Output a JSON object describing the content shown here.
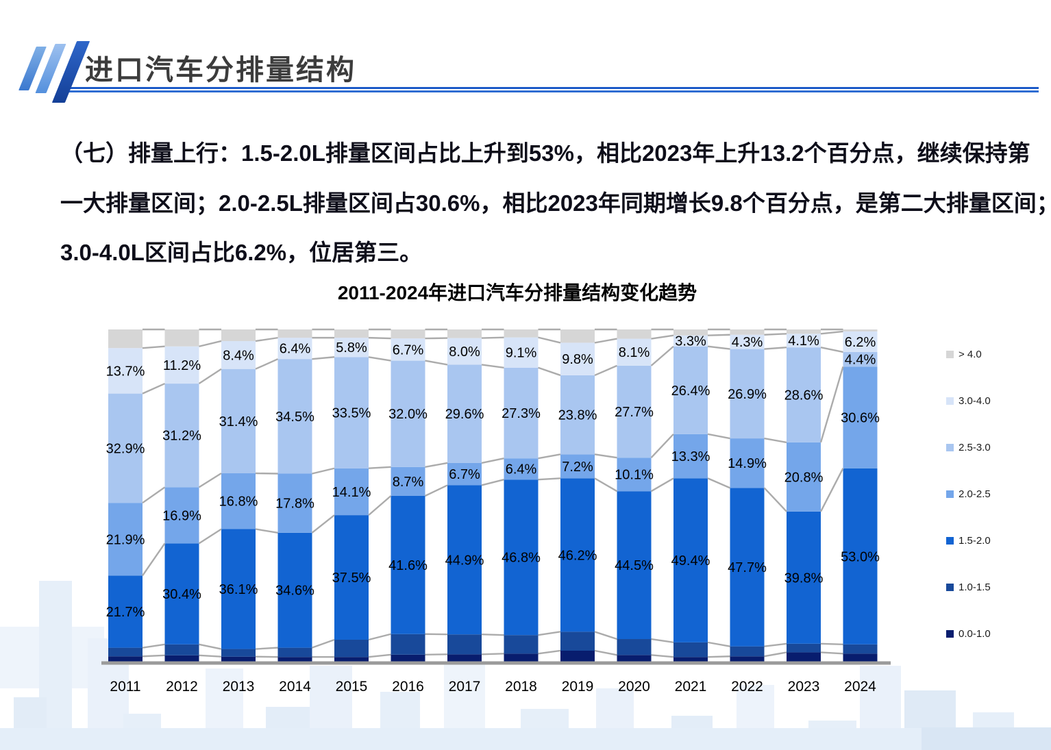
{
  "header": {
    "title": "进口汽车分排量结构"
  },
  "intro": {
    "lines": [
      "（七）排量上行：1.5-2.0L排量区间占比上升到53%，相比2023年上升13.2个百分点，继续保持第",
      "一大排量区间；2.0-2.5L排量区间占30.6%，相比2023年同期增长9.8个百分点，是第二大排量区间；",
      "3.0-4.0L区间占比6.2%，位居第三。"
    ]
  },
  "chart_data": {
    "type": "bar",
    "subtype": "100%-stacked-column-with-series-lines",
    "title": "2011-2024年进口汽车分排量结构变化趋势",
    "unit": "%",
    "grid": false,
    "legend_position": "right",
    "categories": [
      "2011",
      "2012",
      "2013",
      "2014",
      "2015",
      "2016",
      "2017",
      "2018",
      "2019",
      "2020",
      "2021",
      "2022",
      "2023",
      "2024"
    ],
    "series": [
      {
        "name": "0.0-1.0",
        "color": "#081D6E",
        "data_labels_shown": false,
        "values_estimated_from_pixels": true,
        "values": [
          1.6,
          1.9,
          1.5,
          1.4,
          1.4,
          2.1,
          2.2,
          2.4,
          3.3,
          2.0,
          1.4,
          1.6,
          2.8,
          2.4
        ]
      },
      {
        "name": "1.0-1.5",
        "color": "#18499A",
        "data_labels_shown": false,
        "values_estimated_from_pixels": true,
        "values": [
          2.6,
          3.3,
          2.3,
          2.8,
          5.2,
          6.2,
          6.0,
          5.6,
          5.7,
          4.8,
          4.4,
          3.0,
          2.6,
          2.8
        ]
      },
      {
        "name": "1.5-2.0",
        "color": "#1264D2",
        "data_labels_shown": true,
        "values": [
          21.7,
          30.4,
          36.1,
          34.6,
          37.5,
          41.6,
          44.9,
          46.8,
          46.2,
          44.5,
          49.4,
          47.7,
          39.8,
          53.0
        ]
      },
      {
        "name": "2.0-2.5",
        "color": "#74A6EA",
        "data_labels_shown": true,
        "values": [
          21.9,
          16.9,
          16.8,
          17.8,
          14.1,
          8.7,
          6.7,
          6.4,
          7.2,
          10.1,
          13.3,
          14.9,
          20.8,
          30.6
        ]
      },
      {
        "name": "2.5-3.0",
        "color": "#A9C6F0",
        "data_labels_shown": true,
        "values": [
          32.9,
          31.2,
          31.4,
          34.5,
          33.5,
          32.0,
          29.6,
          27.3,
          23.8,
          27.7,
          26.4,
          26.9,
          28.6,
          4.4
        ]
      },
      {
        "name": "3.0-4.0",
        "color": "#D7E4F8",
        "data_labels_shown": true,
        "values": [
          13.7,
          11.2,
          8.4,
          6.4,
          5.8,
          6.7,
          8.0,
          9.1,
          9.8,
          8.1,
          3.3,
          4.3,
          4.1,
          6.2
        ]
      },
      {
        "name": ">4.0",
        "color": "#D6D6D6",
        "data_labels_shown": false,
        "values_estimated_from_pixels": true,
        "values": [
          5.6,
          5.1,
          3.5,
          2.5,
          2.5,
          2.7,
          2.6,
          2.4,
          4.0,
          2.8,
          1.8,
          1.6,
          1.3,
          0.6
        ]
      }
    ],
    "legend": [
      {
        "label": "> 4.0",
        "color": "#D6D6D6"
      },
      {
        "label": "3.0-4.0",
        "color": "#D7E4F8"
      },
      {
        "label": "2.5-3.0",
        "color": "#A9C6F0"
      },
      {
        "label": "2.0-2.5",
        "color": "#74A6EA"
      },
      {
        "label": "1.5-2.0",
        "color": "#1264D2"
      },
      {
        "label": "1.0-1.5",
        "color": "#18499A"
      },
      {
        "label": "0.0-1.0",
        "color": "#081D6E"
      }
    ],
    "connector_line_color": "#ABABAB",
    "axis_line_color": "#9B9B9B",
    "data_label_color": "#000000"
  }
}
